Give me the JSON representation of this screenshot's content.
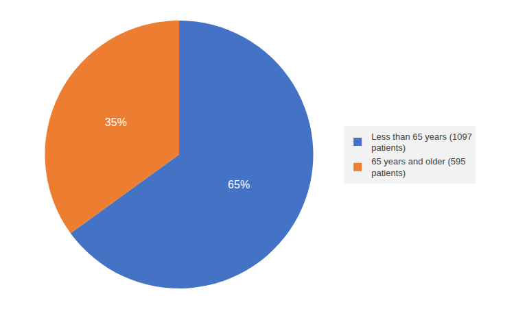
{
  "chart_data": {
    "type": "pie",
    "categories": [
      "Less than 65 years (1097\npatients)",
      "65 years and older (595\npatients)"
    ],
    "values": [
      65,
      35
    ],
    "value_labels": [
      "65%",
      "35%"
    ],
    "colors": [
      "#4472C4",
      "#ED7D31"
    ],
    "data_labels": true,
    "legend": "right"
  }
}
